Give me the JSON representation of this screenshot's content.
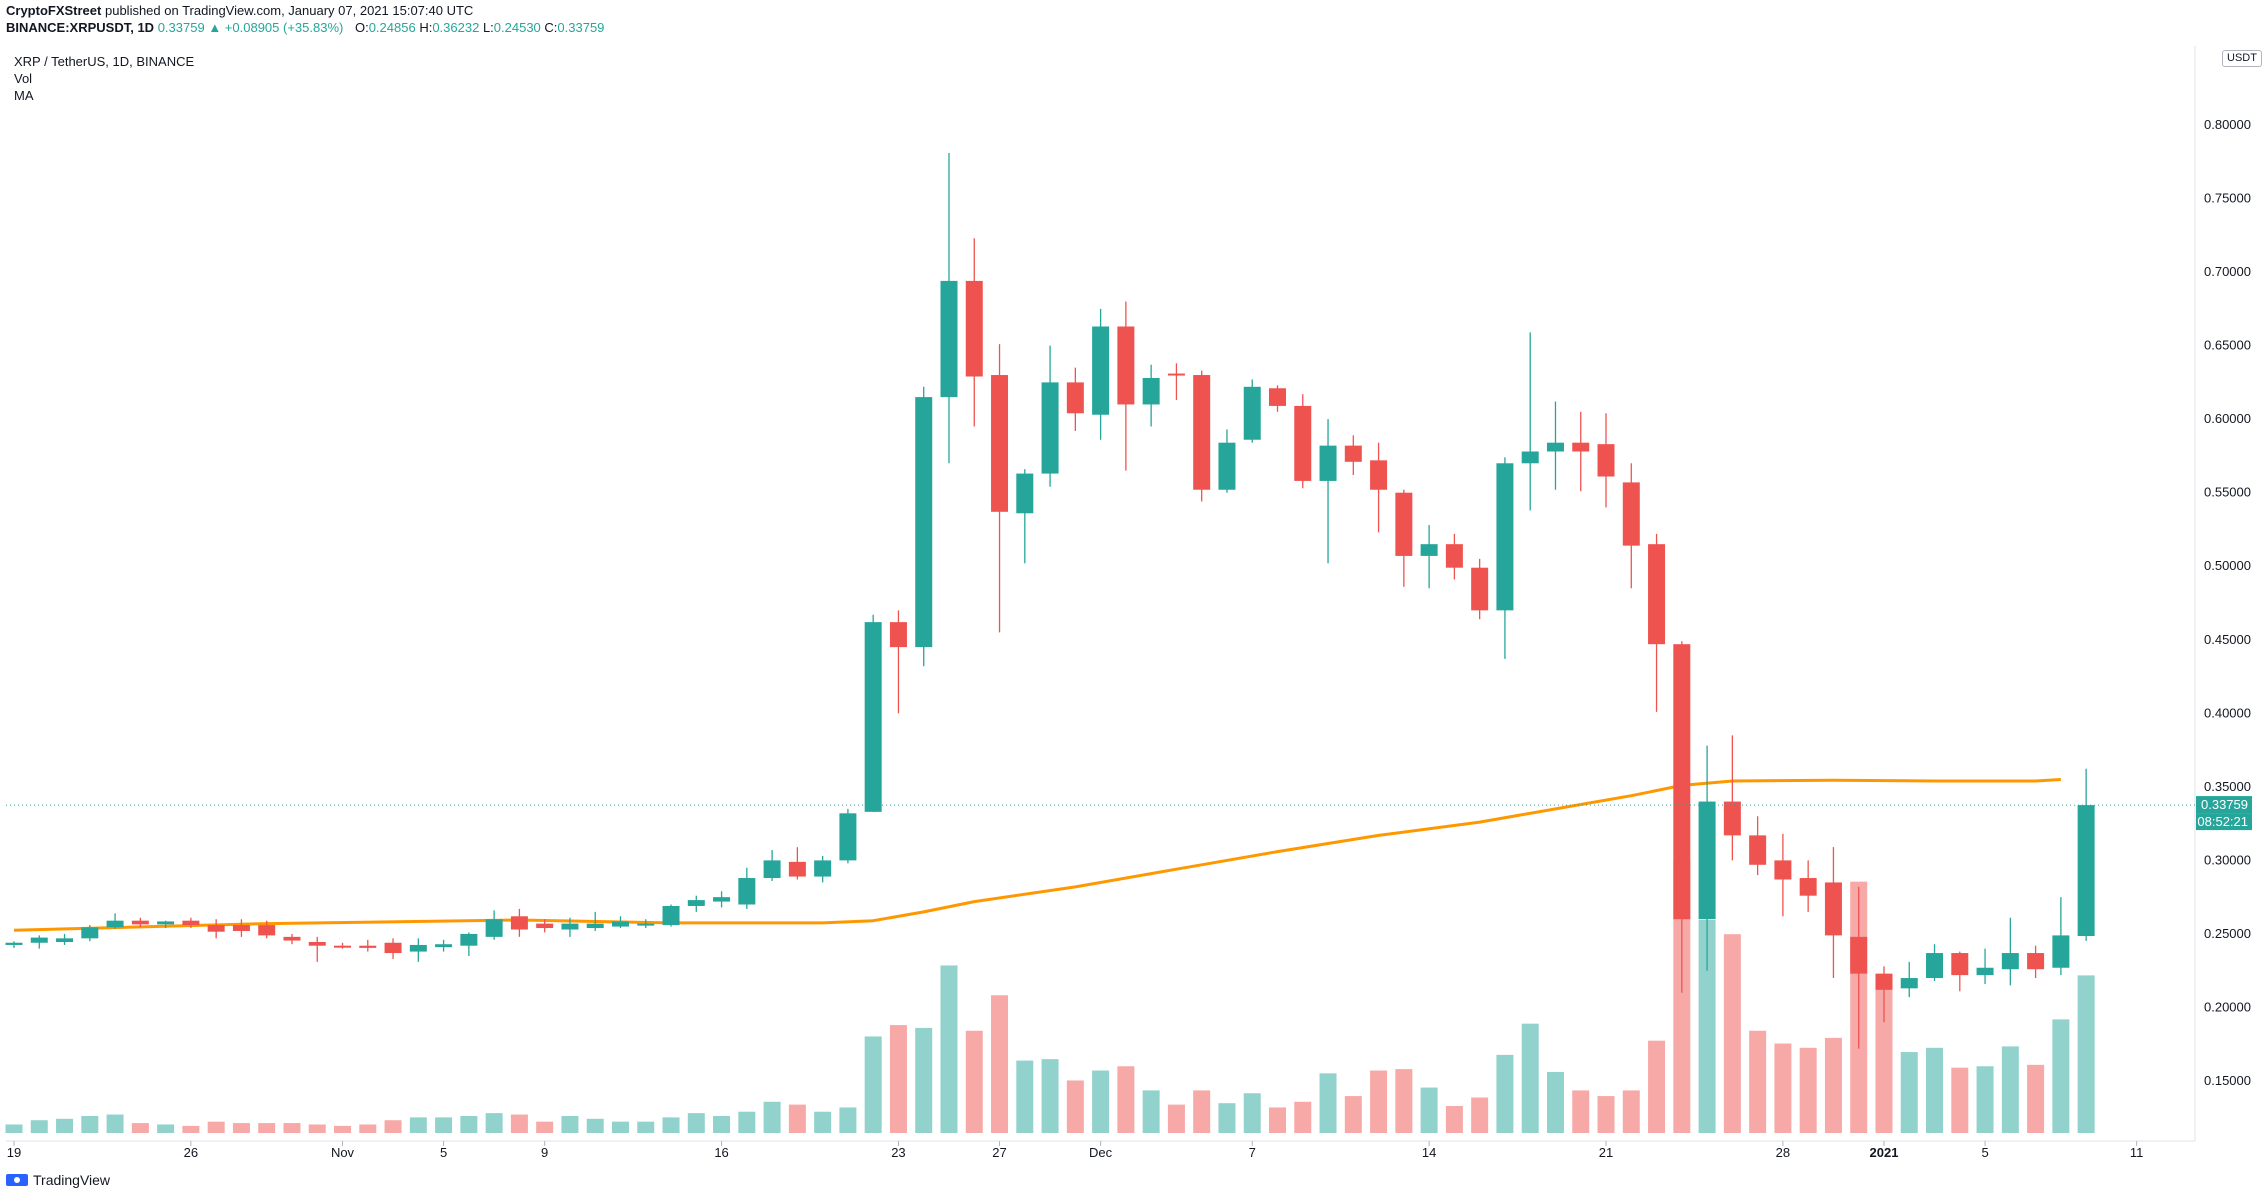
{
  "publisher": {
    "author": "CryptoFXStreet",
    "text": "published on TradingView.com, January 07, 2021 15:07:40 UTC"
  },
  "symbol_line": {
    "symbol": "BINANCE:XRPUSDT, 1D",
    "price": "0.33759",
    "change": "▲ +0.08905 (+35.83%)",
    "o_label": "O:",
    "o": "0.24856",
    "h_label": "H:",
    "h": "0.36232",
    "l_label": "L:",
    "l": "0.24530",
    "c_label": "C:",
    "c": "0.33759"
  },
  "legend": {
    "title": "XRP / TetherUS, 1D, BINANCE",
    "vol": "Vol",
    "ma": "MA"
  },
  "price_axis": {
    "currency": "USDT",
    "ticks": [
      "0.15000",
      "0.20000",
      "0.25000",
      "0.30000",
      "0.35000",
      "0.40000",
      "0.45000",
      "0.50000",
      "0.55000",
      "0.60000",
      "0.65000",
      "0.70000",
      "0.75000",
      "0.80000"
    ],
    "current_label": "0.33759",
    "countdown_label": "08:52:21"
  },
  "time_axis": {
    "ticks": [
      {
        "label": "19",
        "idx": 0
      },
      {
        "label": "26",
        "idx": 7
      },
      {
        "label": "Nov",
        "idx": 13
      },
      {
        "label": "5",
        "idx": 17
      },
      {
        "label": "9",
        "idx": 21
      },
      {
        "label": "16",
        "idx": 28
      },
      {
        "label": "23",
        "idx": 35
      },
      {
        "label": "27",
        "idx": 39
      },
      {
        "label": "Dec",
        "idx": 43
      },
      {
        "label": "7",
        "idx": 49
      },
      {
        "label": "14",
        "idx": 56
      },
      {
        "label": "21",
        "idx": 63
      },
      {
        "label": "28",
        "idx": 70
      },
      {
        "label": "2021",
        "idx": 74
      },
      {
        "label": "5",
        "idx": 78
      },
      {
        "label": "11",
        "idx": 84
      }
    ]
  },
  "colors": {
    "up": "#26a69a",
    "down": "#ef5350",
    "up_vol": "#92d2cc",
    "down_vol": "#f7a9a7",
    "ma": "#ff9800",
    "price_line": "#26a69a"
  },
  "branding": {
    "name": "TradingView"
  },
  "chart_data": {
    "type": "candlestick",
    "title": "XRP / TetherUS, 1D, BINANCE",
    "ylim": [
      0.115,
      0.86
    ],
    "grid": false,
    "candles": [
      {
        "o": 0.2425,
        "h": 0.245,
        "l": 0.2405,
        "c": 0.244,
        "v": 6
      },
      {
        "o": 0.244,
        "h": 0.249,
        "l": 0.24,
        "c": 0.2475,
        "v": 9
      },
      {
        "o": 0.2445,
        "h": 0.25,
        "l": 0.2425,
        "c": 0.247,
        "v": 10
      },
      {
        "o": 0.247,
        "h": 0.256,
        "l": 0.245,
        "c": 0.2545,
        "v": 12
      },
      {
        "o": 0.2545,
        "h": 0.264,
        "l": 0.2535,
        "c": 0.259,
        "v": 13
      },
      {
        "o": 0.259,
        "h": 0.261,
        "l": 0.2545,
        "c": 0.2565,
        "v": 7
      },
      {
        "o": 0.2565,
        "h": 0.259,
        "l": 0.254,
        "c": 0.2585,
        "v": 6
      },
      {
        "o": 0.259,
        "h": 0.261,
        "l": 0.254,
        "c": 0.256,
        "v": 5
      },
      {
        "o": 0.256,
        "h": 0.26,
        "l": 0.247,
        "c": 0.2515,
        "v": 8
      },
      {
        "o": 0.256,
        "h": 0.26,
        "l": 0.248,
        "c": 0.252,
        "v": 7
      },
      {
        "o": 0.256,
        "h": 0.259,
        "l": 0.247,
        "c": 0.249,
        "v": 7
      },
      {
        "o": 0.248,
        "h": 0.25,
        "l": 0.243,
        "c": 0.2455,
        "v": 7
      },
      {
        "o": 0.2445,
        "h": 0.248,
        "l": 0.231,
        "c": 0.242,
        "v": 6
      },
      {
        "o": 0.242,
        "h": 0.244,
        "l": 0.24,
        "c": 0.241,
        "v": 5
      },
      {
        "o": 0.242,
        "h": 0.246,
        "l": 0.238,
        "c": 0.2405,
        "v": 6
      },
      {
        "o": 0.244,
        "h": 0.247,
        "l": 0.233,
        "c": 0.237,
        "v": 9
      },
      {
        "o": 0.238,
        "h": 0.247,
        "l": 0.231,
        "c": 0.2425,
        "v": 11
      },
      {
        "o": 0.241,
        "h": 0.246,
        "l": 0.238,
        "c": 0.243,
        "v": 11
      },
      {
        "o": 0.242,
        "h": 0.251,
        "l": 0.235,
        "c": 0.25,
        "v": 12
      },
      {
        "o": 0.248,
        "h": 0.266,
        "l": 0.246,
        "c": 0.26,
        "v": 14
      },
      {
        "o": 0.262,
        "h": 0.267,
        "l": 0.248,
        "c": 0.253,
        "v": 13
      },
      {
        "o": 0.257,
        "h": 0.26,
        "l": 0.251,
        "c": 0.254,
        "v": 8
      },
      {
        "o": 0.253,
        "h": 0.261,
        "l": 0.248,
        "c": 0.257,
        "v": 12
      },
      {
        "o": 0.254,
        "h": 0.265,
        "l": 0.252,
        "c": 0.257,
        "v": 10
      },
      {
        "o": 0.255,
        "h": 0.262,
        "l": 0.254,
        "c": 0.2585,
        "v": 8
      },
      {
        "o": 0.257,
        "h": 0.26,
        "l": 0.254,
        "c": 0.257,
        "v": 8
      },
      {
        "o": 0.256,
        "h": 0.27,
        "l": 0.255,
        "c": 0.269,
        "v": 11
      },
      {
        "o": 0.269,
        "h": 0.276,
        "l": 0.265,
        "c": 0.273,
        "v": 14
      },
      {
        "o": 0.272,
        "h": 0.279,
        "l": 0.268,
        "c": 0.275,
        "v": 12
      },
      {
        "o": 0.27,
        "h": 0.295,
        "l": 0.267,
        "c": 0.288,
        "v": 15
      },
      {
        "o": 0.288,
        "h": 0.307,
        "l": 0.286,
        "c": 0.3,
        "v": 22
      },
      {
        "o": 0.299,
        "h": 0.309,
        "l": 0.287,
        "c": 0.289,
        "v": 20
      },
      {
        "o": 0.289,
        "h": 0.303,
        "l": 0.285,
        "c": 0.3,
        "v": 15
      },
      {
        "o": 0.3,
        "h": 0.335,
        "l": 0.298,
        "c": 0.332,
        "v": 18
      },
      {
        "o": 0.333,
        "h": 0.467,
        "l": 0.333,
        "c": 0.462,
        "v": 68
      },
      {
        "o": 0.462,
        "h": 0.47,
        "l": 0.4,
        "c": 0.445,
        "v": 76
      },
      {
        "o": 0.445,
        "h": 0.622,
        "l": 0.432,
        "c": 0.615,
        "v": 74
      },
      {
        "o": 0.615,
        "h": 0.781,
        "l": 0.57,
        "c": 0.694,
        "v": 118
      },
      {
        "o": 0.694,
        "h": 0.723,
        "l": 0.595,
        "c": 0.629,
        "v": 72
      },
      {
        "o": 0.63,
        "h": 0.651,
        "l": 0.455,
        "c": 0.537,
        "v": 97
      },
      {
        "o": 0.536,
        "h": 0.566,
        "l": 0.502,
        "c": 0.563,
        "v": 51
      },
      {
        "o": 0.563,
        "h": 0.65,
        "l": 0.554,
        "c": 0.625,
        "v": 52
      },
      {
        "o": 0.625,
        "h": 0.635,
        "l": 0.592,
        "c": 0.604,
        "v": 37
      },
      {
        "o": 0.603,
        "h": 0.675,
        "l": 0.586,
        "c": 0.663,
        "v": 44
      },
      {
        "o": 0.663,
        "h": 0.68,
        "l": 0.565,
        "c": 0.61,
        "v": 47
      },
      {
        "o": 0.61,
        "h": 0.637,
        "l": 0.595,
        "c": 0.628,
        "v": 30
      },
      {
        "o": 0.631,
        "h": 0.638,
        "l": 0.613,
        "c": 0.63,
        "v": 20
      },
      {
        "o": 0.63,
        "h": 0.633,
        "l": 0.544,
        "c": 0.552,
        "v": 30
      },
      {
        "o": 0.552,
        "h": 0.593,
        "l": 0.55,
        "c": 0.584,
        "v": 21
      },
      {
        "o": 0.586,
        "h": 0.627,
        "l": 0.584,
        "c": 0.622,
        "v": 28
      },
      {
        "o": 0.621,
        "h": 0.623,
        "l": 0.605,
        "c": 0.609,
        "v": 18
      },
      {
        "o": 0.609,
        "h": 0.617,
        "l": 0.553,
        "c": 0.558,
        "v": 22
      },
      {
        "o": 0.558,
        "h": 0.6,
        "l": 0.502,
        "c": 0.582,
        "v": 42
      },
      {
        "o": 0.582,
        "h": 0.589,
        "l": 0.562,
        "c": 0.571,
        "v": 26
      },
      {
        "o": 0.572,
        "h": 0.584,
        "l": 0.523,
        "c": 0.552,
        "v": 44
      },
      {
        "o": 0.55,
        "h": 0.552,
        "l": 0.486,
        "c": 0.507,
        "v": 45
      },
      {
        "o": 0.507,
        "h": 0.528,
        "l": 0.485,
        "c": 0.515,
        "v": 32
      },
      {
        "o": 0.515,
        "h": 0.522,
        "l": 0.491,
        "c": 0.499,
        "v": 19
      },
      {
        "o": 0.499,
        "h": 0.505,
        "l": 0.464,
        "c": 0.47,
        "v": 25
      },
      {
        "o": 0.47,
        "h": 0.574,
        "l": 0.437,
        "c": 0.57,
        "v": 55
      },
      {
        "o": 0.57,
        "h": 0.659,
        "l": 0.538,
        "c": 0.578,
        "v": 77
      },
      {
        "o": 0.578,
        "h": 0.612,
        "l": 0.552,
        "c": 0.584,
        "v": 43
      },
      {
        "o": 0.584,
        "h": 0.605,
        "l": 0.551,
        "c": 0.578,
        "v": 30
      },
      {
        "o": 0.583,
        "h": 0.604,
        "l": 0.54,
        "c": 0.561,
        "v": 26
      },
      {
        "o": 0.557,
        "h": 0.57,
        "l": 0.485,
        "c": 0.514,
        "v": 30
      },
      {
        "o": 0.515,
        "h": 0.522,
        "l": 0.401,
        "c": 0.447,
        "v": 65
      },
      {
        "o": 0.447,
        "h": 0.449,
        "l": 0.21,
        "c": 0.26,
        "v": 192
      },
      {
        "o": 0.26,
        "h": 0.378,
        "l": 0.225,
        "c": 0.34,
        "v": 150
      },
      {
        "o": 0.34,
        "h": 0.385,
        "l": 0.3,
        "c": 0.317,
        "v": 140
      },
      {
        "o": 0.317,
        "h": 0.33,
        "l": 0.29,
        "c": 0.297,
        "v": 72
      },
      {
        "o": 0.3,
        "h": 0.318,
        "l": 0.262,
        "c": 0.287,
        "v": 63
      },
      {
        "o": 0.288,
        "h": 0.3,
        "l": 0.265,
        "c": 0.276,
        "v": 60
      },
      {
        "o": 0.285,
        "h": 0.309,
        "l": 0.22,
        "c": 0.249,
        "v": 67
      },
      {
        "o": 0.248,
        "h": 0.282,
        "l": 0.172,
        "c": 0.223,
        "v": 177
      },
      {
        "o": 0.223,
        "h": 0.228,
        "l": 0.19,
        "c": 0.212,
        "v": 106
      },
      {
        "o": 0.213,
        "h": 0.231,
        "l": 0.207,
        "c": 0.22,
        "v": 57
      },
      {
        "o": 0.22,
        "h": 0.243,
        "l": 0.218,
        "c": 0.237,
        "v": 60
      },
      {
        "o": 0.237,
        "h": 0.238,
        "l": 0.211,
        "c": 0.222,
        "v": 46
      },
      {
        "o": 0.222,
        "h": 0.24,
        "l": 0.216,
        "c": 0.227,
        "v": 47
      },
      {
        "o": 0.226,
        "h": 0.261,
        "l": 0.215,
        "c": 0.237,
        "v": 61
      },
      {
        "o": 0.237,
        "h": 0.242,
        "l": 0.22,
        "c": 0.226,
        "v": 48
      },
      {
        "o": 0.227,
        "h": 0.275,
        "l": 0.222,
        "c": 0.249,
        "v": 80
      },
      {
        "o": 0.2486,
        "h": 0.3623,
        "l": 0.2453,
        "c": 0.3376,
        "v": 111
      }
    ],
    "ma": [
      [
        0,
        0.2525
      ],
      [
        10,
        0.257
      ],
      [
        20,
        0.2595
      ],
      [
        26,
        0.2575
      ],
      [
        32,
        0.2575
      ],
      [
        34,
        0.259
      ],
      [
        36,
        0.265
      ],
      [
        38,
        0.272
      ],
      [
        42,
        0.282
      ],
      [
        46,
        0.294
      ],
      [
        50,
        0.306
      ],
      [
        54,
        0.317
      ],
      [
        58,
        0.326
      ],
      [
        62,
        0.338
      ],
      [
        64,
        0.344
      ],
      [
        66,
        0.351
      ],
      [
        68,
        0.354
      ],
      [
        72,
        0.3545
      ],
      [
        76,
        0.354
      ],
      [
        80,
        0.354
      ],
      [
        81,
        0.355
      ]
    ]
  }
}
